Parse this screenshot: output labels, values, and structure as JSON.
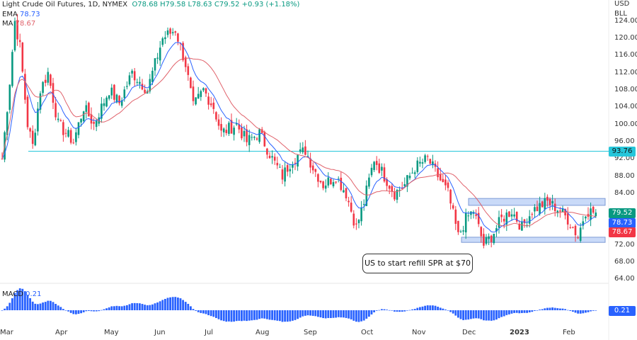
{
  "header": {
    "symbol": "Light Crude Oil Futures, 1D, NYMEX",
    "open": "O78.68",
    "high": "H79.58",
    "low": "L78.63",
    "close": "C79.52",
    "change": "+0.93 (+1.18%)",
    "ema_label": "EMA",
    "ema_value": "78.73",
    "ma_label": "MA",
    "ma_value": "78.67"
  },
  "axis": {
    "currency": "USD",
    "unit": "BLL"
  },
  "macd": {
    "label": "MACD",
    "value": "0.21"
  },
  "badges": {
    "hline": "93.76",
    "close": "79.52",
    "ema": "78.73",
    "ma": "78.67"
  },
  "annotation": "US to start refill SPR at $70",
  "colors": {
    "up": "#089981",
    "down": "#f23645",
    "ema": "#2962ff",
    "ma": "#e0626b",
    "hline": "#26c6da",
    "box": "#c9daf8",
    "macd": "#2962ff"
  },
  "chart_data": {
    "type": "candlestick",
    "title": "Light Crude Oil Futures, 1D, NYMEX",
    "ylim": [
      62,
      126
    ],
    "yticks": [
      "124.00",
      "120.00",
      "116.00",
      "112.00",
      "108.00",
      "104.00",
      "100.00",
      "96.00",
      "92.00",
      "88.00",
      "84.00",
      "72.00",
      "68.00",
      "64.00"
    ],
    "xticks": [
      "Mar",
      "Apr",
      "May",
      "Jun",
      "Jul",
      "Aug",
      "Sep",
      "Oct",
      "Nov",
      "Dec",
      "2023",
      "Feb"
    ],
    "horizontal_line": 93.76,
    "zones": [
      {
        "from": 81.2,
        "to": 82.8
      },
      {
        "from": 72.6,
        "to": 73.8
      }
    ],
    "close_path": [
      [
        0,
        92
      ],
      [
        3,
        110
      ],
      [
        5,
        124
      ],
      [
        7,
        118
      ],
      [
        10,
        100
      ],
      [
        12,
        95
      ],
      [
        15,
        108
      ],
      [
        18,
        112
      ],
      [
        22,
        100
      ],
      [
        28,
        96
      ],
      [
        32,
        104
      ],
      [
        36,
        100
      ],
      [
        42,
        108
      ],
      [
        46,
        105
      ],
      [
        51,
        112
      ],
      [
        57,
        108
      ],
      [
        63,
        120
      ],
      [
        68,
        122
      ],
      [
        72,
        114
      ],
      [
        75,
        104
      ],
      [
        79,
        108
      ],
      [
        83,
        104
      ],
      [
        86,
        98
      ],
      [
        92,
        100
      ],
      [
        96,
        96
      ],
      [
        101,
        98
      ],
      [
        106,
        92
      ],
      [
        110,
        88
      ],
      [
        114,
        92
      ],
      [
        119,
        94
      ],
      [
        122,
        90
      ],
      [
        126,
        86
      ],
      [
        131,
        88
      ],
      [
        135,
        84
      ],
      [
        139,
        76
      ],
      [
        142,
        82
      ],
      [
        146,
        92
      ],
      [
        150,
        88
      ],
      [
        154,
        84
      ],
      [
        158,
        86
      ],
      [
        162,
        90
      ],
      [
        167,
        92
      ],
      [
        171,
        88
      ],
      [
        175,
        84
      ],
      [
        179,
        74
      ],
      [
        182,
        78
      ],
      [
        185,
        80
      ],
      [
        189,
        72
      ],
      [
        192,
        74
      ],
      [
        196,
        78
      ],
      [
        200,
        80
      ],
      [
        204,
        76
      ],
      [
        208,
        80
      ],
      [
        214,
        82
      ],
      [
        219,
        80
      ],
      [
        222,
        78
      ],
      [
        226,
        74
      ],
      [
        229,
        80
      ],
      [
        233,
        79.52
      ]
    ]
  }
}
